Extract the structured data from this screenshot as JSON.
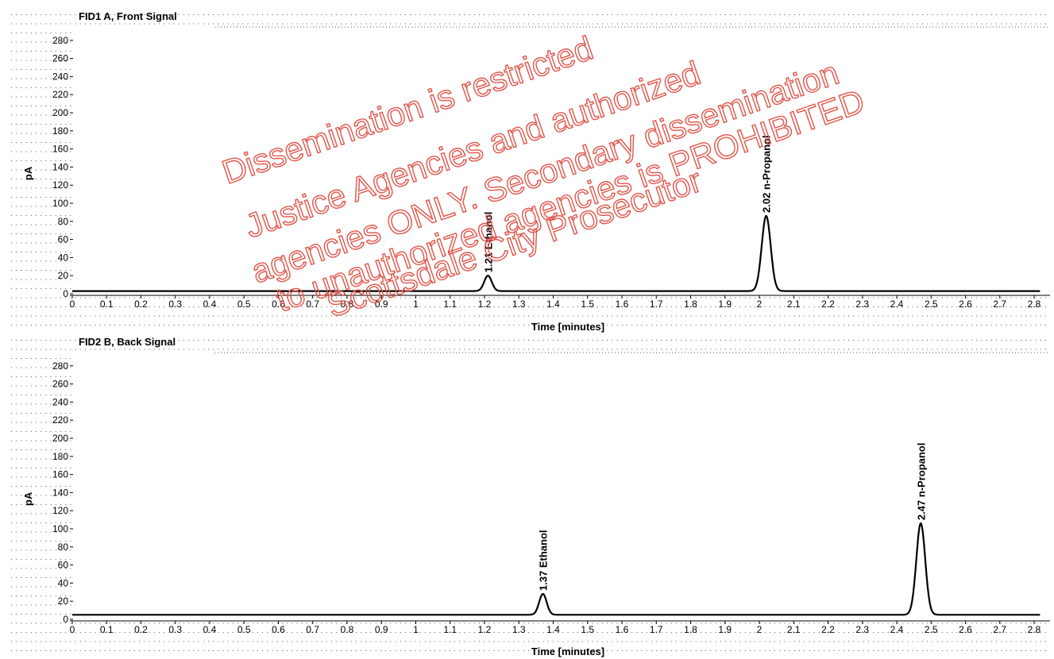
{
  "chart_data": [
    {
      "type": "line",
      "title": "FID1 A, Front Signal",
      "xlabel": "Time [minutes]",
      "ylabel": "pA",
      "xlim": [
        0,
        2.8
      ],
      "ylim": [
        0,
        290
      ],
      "x_ticks": [
        0,
        0.1,
        0.2,
        0.3,
        0.4,
        0.5,
        0.6,
        0.7,
        0.8,
        0.9,
        1,
        1.1,
        1.2,
        1.3,
        1.4,
        1.5,
        1.6,
        1.7,
        1.8,
        1.9,
        2,
        2.1,
        2.2,
        2.3,
        2.4,
        2.5,
        2.6,
        2.7,
        2.8
      ],
      "x_tick_labels": [
        "0",
        "0.1",
        "0.2",
        "0.3",
        "0.4",
        "0.5",
        "0.6",
        "0.7",
        "0.8",
        "0.9",
        "1",
        "1.1",
        "1.2",
        "1.3",
        "1.4",
        "1.5",
        "1.6",
        "1.7",
        "1.8",
        "1.9",
        "2",
        "2.1",
        "2.2",
        "2.3",
        "2.4",
        "2.5",
        "2.6",
        "2.7",
        "2.8"
      ],
      "y_ticks": [
        0,
        20,
        40,
        60,
        80,
        100,
        120,
        140,
        160,
        180,
        200,
        220,
        240,
        260,
        280
      ],
      "y_tick_labels": [
        "0",
        "20",
        "40",
        "60",
        "80",
        "100",
        "120",
        "140",
        "160",
        "180",
        "200",
        "220",
        "240",
        "260",
        "280"
      ],
      "grid": true,
      "baseline": 3,
      "peaks": [
        {
          "time": 1.21,
          "height": 20,
          "width": 0.011,
          "label": "1.21  Ethanol"
        },
        {
          "time": 2.02,
          "height": 86,
          "width": 0.013,
          "label": "2.02  n-Propanol"
        }
      ]
    },
    {
      "type": "line",
      "title": "FID2 B, Back Signal",
      "xlabel": "Time [minutes]",
      "ylabel": "pA",
      "xlim": [
        0,
        2.8
      ],
      "ylim": [
        0,
        290
      ],
      "x_ticks": [
        0,
        0.1,
        0.2,
        0.3,
        0.4,
        0.5,
        0.6,
        0.7,
        0.8,
        0.9,
        1,
        1.1,
        1.2,
        1.3,
        1.4,
        1.5,
        1.6,
        1.7,
        1.8,
        1.9,
        2,
        2.1,
        2.2,
        2.3,
        2.4,
        2.5,
        2.6,
        2.7,
        2.8
      ],
      "x_tick_labels": [
        "0",
        "0.1",
        "0.2",
        "0.3",
        "0.4",
        "0.5",
        "0.6",
        "0.7",
        "0.8",
        "0.9",
        "1",
        "1.1",
        "1.2",
        "1.3",
        "1.4",
        "1.5",
        "1.6",
        "1.7",
        "1.8",
        "1.9",
        "2",
        "2.1",
        "2.2",
        "2.3",
        "2.4",
        "2.5",
        "2.6",
        "2.7",
        "2.8"
      ],
      "y_ticks": [
        0,
        20,
        40,
        60,
        80,
        100,
        120,
        140,
        160,
        180,
        200,
        220,
        240,
        260,
        280
      ],
      "y_tick_labels": [
        "0",
        "20",
        "40",
        "60",
        "80",
        "100",
        "120",
        "140",
        "160",
        "180",
        "200",
        "220",
        "240",
        "260",
        "280"
      ],
      "grid": true,
      "baseline": 5,
      "peaks": [
        {
          "time": 1.37,
          "height": 28,
          "width": 0.011,
          "label": "1.37  Ethanol"
        },
        {
          "time": 2.47,
          "height": 106,
          "width": 0.013,
          "label": "2.47  n-Propanol"
        }
      ]
    }
  ],
  "watermark": {
    "lines": [
      "Dissemination is restricted",
      "Justice Agencies and authorized",
      "agencies ONLY. Secondary dissemination",
      "to unauthorized agencies is PROHIBITED",
      "Scottsdale City Prosecutor"
    ],
    "color": "#e0554a"
  },
  "colors": {
    "trace": "#000000",
    "grid": "#555555",
    "text": "#000000"
  }
}
